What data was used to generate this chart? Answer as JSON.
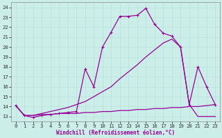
{
  "xlabel": "Windchill (Refroidissement éolien,°C)",
  "bg_color": "#cceee8",
  "line_color": "#990099",
  "grid_color": "#b8e0da",
  "line1_x": [
    0,
    1,
    2,
    3,
    4,
    5,
    6,
    7,
    8,
    9,
    10,
    11,
    12,
    13,
    14,
    15,
    16,
    17,
    18,
    19,
    20,
    21,
    22,
    23
  ],
  "line1_y": [
    14.1,
    13.1,
    12.9,
    13.1,
    13.2,
    13.3,
    13.4,
    13.5,
    17.8,
    16.0,
    20.0,
    21.5,
    23.1,
    23.1,
    23.2,
    23.9,
    22.3,
    21.4,
    21.1,
    20.0,
    14.2,
    18.0,
    16.0,
    14.2
  ],
  "line2_x": [
    0,
    1,
    2,
    3,
    4,
    5,
    6,
    7,
    8,
    9,
    10,
    11,
    12,
    13,
    14,
    15,
    16,
    17,
    18,
    19,
    20,
    21,
    22,
    23
  ],
  "line2_y": [
    14.1,
    13.1,
    13.1,
    13.2,
    13.2,
    13.3,
    13.3,
    13.3,
    13.4,
    13.4,
    13.5,
    13.5,
    13.6,
    13.6,
    13.7,
    13.7,
    13.8,
    13.8,
    13.9,
    13.9,
    14.0,
    14.0,
    14.1,
    14.2
  ],
  "line3_x": [
    0,
    1,
    2,
    3,
    4,
    5,
    6,
    7,
    8,
    9,
    10,
    11,
    12,
    13,
    14,
    15,
    16,
    17,
    18,
    19,
    20,
    21,
    22,
    23
  ],
  "line3_y": [
    14.1,
    13.1,
    13.1,
    13.3,
    13.5,
    13.7,
    13.9,
    14.2,
    14.5,
    15.0,
    15.5,
    16.0,
    16.8,
    17.5,
    18.2,
    19.0,
    19.7,
    20.4,
    20.8,
    20.0,
    14.2,
    13.0,
    13.0,
    13.0
  ],
  "xlim": [
    -0.5,
    23.5
  ],
  "ylim": [
    12.5,
    24.5
  ],
  "xticks": [
    0,
    1,
    2,
    3,
    4,
    5,
    6,
    7,
    8,
    9,
    10,
    11,
    12,
    13,
    14,
    15,
    16,
    17,
    18,
    19,
    20,
    21,
    22,
    23
  ],
  "yticks": [
    13,
    14,
    15,
    16,
    17,
    18,
    19,
    20,
    21,
    22,
    23,
    24
  ],
  "xlabel_fontsize": 5.5,
  "tick_labelsize": 5.2,
  "line_width": 0.9,
  "marker_size": 3.5
}
